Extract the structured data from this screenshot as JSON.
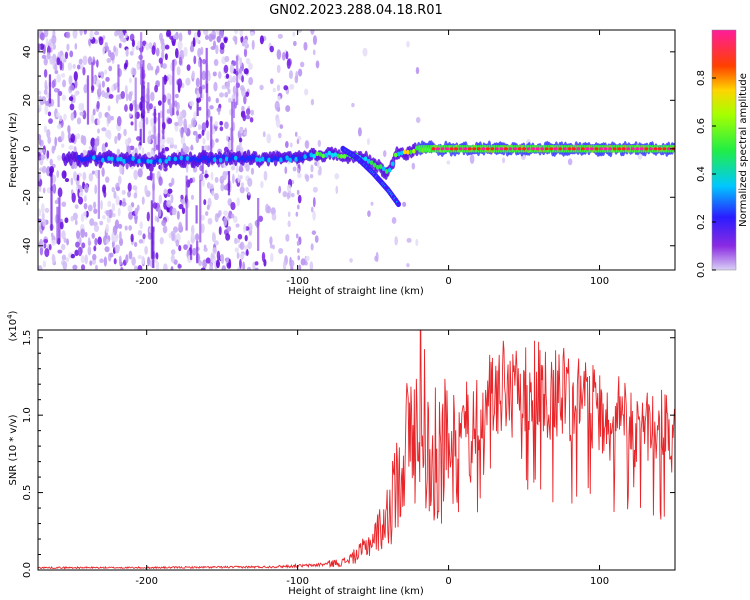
{
  "figure": {
    "title": "GN02.2023.288.04.18.R01"
  },
  "chart_data": [
    {
      "type": "heatmap",
      "title": "GN02.2023.288.04.18.R01",
      "xlabel": "Height of straight line (km)",
      "ylabel": "Frequency (Hz)",
      "xlim": [
        -272,
        150
      ],
      "ylim": [
        -50,
        49
      ],
      "xticks": [
        -200,
        -100,
        0,
        100
      ],
      "yticks": [
        -40,
        -20,
        0,
        20,
        40
      ],
      "colorbar": {
        "label": "Normalized spectral amplitude",
        "range": [
          0,
          1
        ],
        "ticks": [
          "0.0",
          "0.2",
          "0.4",
          "0.6",
          "0.8"
        ],
        "colormap": "rainbow (violet, blue, cyan, green, yellow, red, magenta)"
      },
      "ridge": {
        "description": "main spectral ridge",
        "x": [
          -235,
          -200,
          -150,
          -100,
          -80,
          -60,
          -50,
          -40,
          -35,
          -20,
          0,
          50,
          150
        ],
        "frequency": [
          -4,
          -5,
          -4,
          -4,
          -2,
          -3,
          -6,
          -10,
          -3,
          0,
          0,
          0,
          0
        ]
      },
      "branch": {
        "x": [
          -70,
          -60,
          -50,
          -40,
          -33
        ],
        "frequency": [
          0,
          -4,
          -10,
          -17,
          -23
        ]
      },
      "grid": false
    },
    {
      "type": "line",
      "xlabel": "Height of straight line (km)",
      "ylabel": "SNR (10 * v/v)",
      "y_multiplier_label": "(x10^4)",
      "xlim": [
        -272,
        150
      ],
      "ylim": [
        0,
        1.55
      ],
      "xticks": [
        -200,
        -100,
        0,
        100
      ],
      "yticks": [
        0.0,
        0.5,
        1.0,
        1.5
      ],
      "series_color": "#e8262a",
      "envelope": {
        "x": [
          -272,
          -200,
          -120,
          -90,
          -70,
          -60,
          -50,
          -40,
          -35,
          -30,
          -25,
          -20,
          -18,
          -15,
          -10,
          0,
          10,
          20,
          30,
          40,
          50,
          60,
          70,
          80,
          90,
          100,
          110,
          120,
          130,
          140,
          150
        ],
        "y": [
          0.015,
          0.015,
          0.02,
          0.03,
          0.05,
          0.1,
          0.2,
          0.35,
          0.55,
          0.75,
          0.9,
          0.9,
          1.45,
          0.8,
          0.75,
          0.85,
          0.95,
          1.05,
          1.12,
          1.18,
          1.2,
          1.2,
          1.15,
          1.12,
          1.08,
          1.05,
          1.0,
          0.95,
          0.92,
          0.92,
          0.95
        ]
      },
      "grid": false
    }
  ]
}
